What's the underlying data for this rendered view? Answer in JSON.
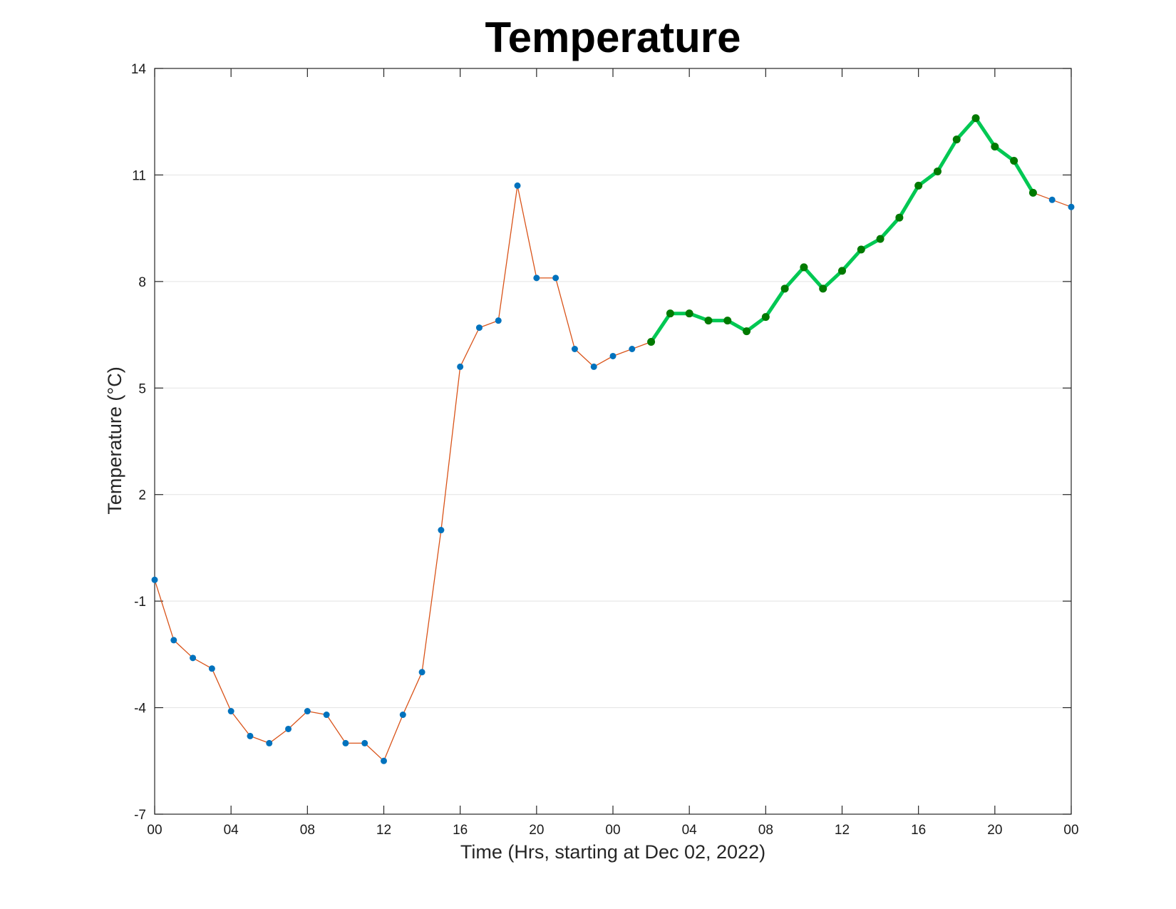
{
  "chart_data": {
    "type": "line",
    "title": "Temperature",
    "xlabel": "Time (Hrs, starting at Dec 02, 2022)",
    "ylabel": "Temperature (°C)",
    "x_unit": "hours",
    "xlim": [
      0,
      48
    ],
    "ylim": [
      -7,
      14
    ],
    "yticks": [
      -7,
      -4,
      -1,
      2,
      5,
      8,
      11,
      14
    ],
    "xticks": [
      0,
      4,
      8,
      12,
      16,
      20,
      24,
      28,
      32,
      36,
      40,
      44,
      48
    ],
    "xtick_labels": [
      "00",
      "04",
      "08",
      "12",
      "16",
      "20",
      "00",
      "04",
      "08",
      "12",
      "16",
      "20",
      "00"
    ],
    "grid": "horizontal",
    "series": [
      {
        "x": [
          0,
          1,
          2,
          3,
          4,
          5,
          6,
          7,
          8,
          9,
          10,
          11,
          12,
          13,
          14,
          15,
          16,
          17,
          18,
          19,
          20,
          21,
          22,
          23,
          24,
          25,
          26,
          27,
          28,
          29,
          30,
          31,
          32,
          33,
          34,
          35,
          36,
          37,
          38,
          39,
          40,
          41,
          42,
          43,
          44,
          45,
          46,
          47,
          48
        ],
        "values": [
          -0.4,
          -2.1,
          -2.6,
          -2.9,
          -4.1,
          -4.8,
          -5.0,
          -4.6,
          -4.1,
          -4.2,
          -5.0,
          -5.0,
          -5.5,
          -4.2,
          -3.0,
          1.0,
          5.6,
          6.7,
          6.9,
          10.7,
          8.1,
          8.1,
          6.1,
          5.6,
          5.9,
          6.1,
          6.3,
          7.1,
          7.1,
          6.9,
          6.9,
          6.6,
          7.0,
          7.8,
          8.4,
          7.8,
          8.3,
          8.9,
          9.2,
          9.8,
          10.7,
          11.1,
          12.0,
          12.6,
          11.8,
          11.4,
          10.5,
          10.3,
          10.1
        ],
        "color": "#d95319",
        "marker_color": "#0072bd"
      },
      {
        "x": [
          26,
          27,
          28,
          29,
          30,
          31,
          32,
          33,
          34,
          35,
          36,
          37,
          38,
          39,
          40,
          41,
          42,
          43,
          44,
          45,
          46
        ],
        "values": [
          6.3,
          7.1,
          7.1,
          6.9,
          6.9,
          6.6,
          7.0,
          7.8,
          8.4,
          7.8,
          8.3,
          8.9,
          9.2,
          9.8,
          10.7,
          11.1,
          12.0,
          12.6,
          11.8,
          11.4,
          10.5
        ],
        "color": "#00c853",
        "marker_color": "#007a00"
      }
    ]
  }
}
